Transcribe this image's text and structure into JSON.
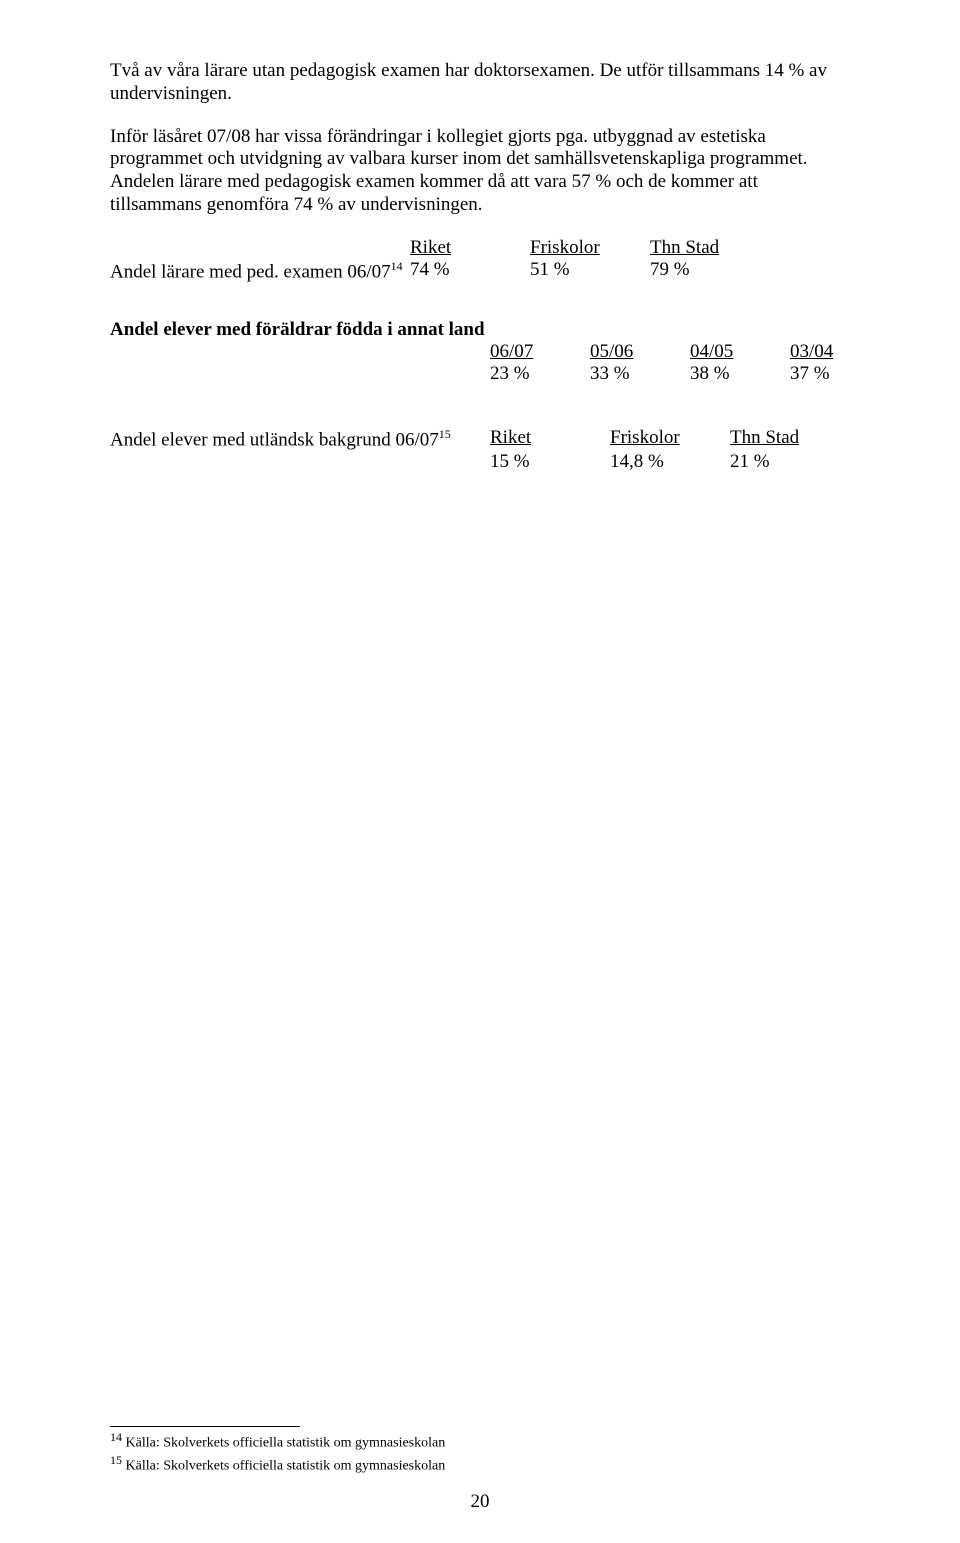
{
  "para1": "Två av våra lärare utan pedagogisk examen har doktorsexamen. De utför tillsammans 14 % av undervisningen.",
  "para2": " Inför läsåret 07/08 har vissa förändringar i kollegiet gjorts pga. utbyggnad av estetiska programmet och utvidgning av valbara kurser inom det samhällsvetenskapliga programmet. Andelen lärare med pedagogisk examen kommer då att vara 57 % och de kommer att tillsammans genomföra 74 % av undervisningen.",
  "table1": {
    "headers": {
      "col1": "Riket",
      "col2": "Friskolor",
      "col3": "Thn Stad"
    },
    "row_label_prefix": "Andel lärare med ped. examen 06/07",
    "row_label_sup": "14",
    "values": {
      "col1": "74 %",
      "col2": "51 %",
      "col3": "79 %"
    }
  },
  "table2": {
    "title": "Andel elever med föräldrar födda i annat land",
    "headers": {
      "c1": "06/07",
      "c2": "05/06",
      "c3": "04/05",
      "c4": "03/04"
    },
    "values": {
      "c1": "23 %",
      "c2": "33 %",
      "c3": "38 %",
      "c4": "37 %"
    }
  },
  "table3": {
    "label_prefix": "Andel elever med utländsk bakgrund 06/07",
    "label_sup": "15",
    "headers": {
      "c1": "Riket",
      "c2": "Friskolor",
      "c3": "Thn Stad"
    },
    "values": {
      "c1": "15 %",
      "c2": "14,8 %",
      "c3": "21 %"
    }
  },
  "footnotes": {
    "f14_sup": "14",
    "f14_text": " Källa: Skolverkets officiella statistik om gymnasieskolan",
    "f15_sup": "15",
    "f15_text": " Källa: Skolverkets officiella statistik om gymnasieskolan"
  },
  "page_number": "20"
}
